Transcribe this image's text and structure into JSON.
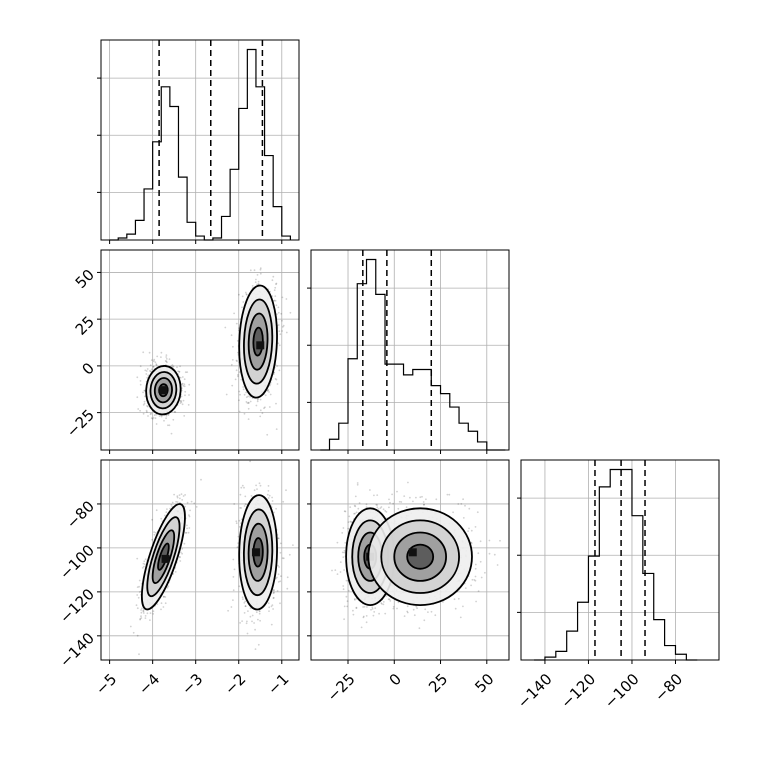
{
  "chart_data": {
    "type": "corner",
    "parameters": [
      {
        "id": "p1",
        "range": [
          -5.2,
          -0.6
        ],
        "ticks": [
          -5,
          -4,
          -3,
          -2,
          -1
        ],
        "tick_labels": [
          "−5",
          "−4",
          "−3",
          "−2",
          "−1"
        ],
        "quantiles": [
          -3.85,
          -2.65,
          -1.45
        ],
        "histogram": {
          "edges": [
            -5.0,
            -4.8,
            -4.6,
            -4.4,
            -4.2,
            -4.0,
            -3.8,
            -3.6,
            -3.4,
            -3.2,
            -3.0,
            -2.8,
            -2.6,
            -2.4,
            -2.2,
            -2.0,
            -1.8,
            -1.6,
            -1.4,
            -1.2,
            -1.0,
            -0.8
          ],
          "counts": [
            0,
            1,
            3,
            10,
            26,
            50,
            78,
            68,
            32,
            9,
            2,
            0,
            1,
            12,
            36,
            67,
            97,
            78,
            43,
            17,
            2
          ]
        }
      },
      {
        "id": "p2",
        "range": [
          -45,
          62
        ],
        "ticks": [
          -25,
          0,
          25,
          50
        ],
        "tick_labels": [
          "−25",
          "0",
          "25",
          "50"
        ],
        "quantiles": [
          -17,
          -4,
          20
        ],
        "histogram": {
          "edges": [
            -40,
            -35,
            -30,
            -25,
            -20,
            -15,
            -10,
            -5,
            0,
            5,
            10,
            15,
            20,
            25,
            30,
            35,
            40,
            45,
            50,
            55,
            60
          ],
          "counts": [
            0,
            4,
            10,
            34,
            62,
            71,
            58,
            32,
            32,
            28,
            30,
            30,
            24,
            21,
            16,
            10,
            7,
            3,
            0,
            0
          ]
        }
      },
      {
        "id": "p3",
        "range": [
          -151,
          -60
        ],
        "ticks": [
          -140,
          -120,
          -100,
          -80
        ],
        "tick_labels": [
          "−140",
          "−120",
          "−100",
          "−80"
        ],
        "quantiles": [
          -117,
          -105,
          -94
        ],
        "histogram": {
          "edges": [
            -145,
            -140,
            -135,
            -130,
            -125,
            -120,
            -115,
            -110,
            -105,
            -100,
            -95,
            -90,
            -85,
            -80,
            -75,
            -70
          ],
          "counts": [
            0,
            1,
            3,
            10,
            20,
            36,
            60,
            66,
            66,
            50,
            30,
            14,
            5,
            2,
            0
          ]
        }
      }
    ],
    "pairs": [
      {
        "x": "p1",
        "y": "p2",
        "modes": [
          {
            "center": [
              -3.75,
              -13
            ],
            "sigma": [
              0.2,
              6.5
            ],
            "rho": 0.05,
            "peak_x": -3.75,
            "peak_y": -13
          },
          {
            "center": [
              -1.55,
              13
            ],
            "sigma": [
              0.22,
              15
            ],
            "rho": 0.1,
            "peak_x": -1.5,
            "peak_y": 11
          }
        ]
      },
      {
        "x": "p1",
        "y": "p3",
        "modes": [
          {
            "center": [
              -3.75,
              -104
            ],
            "sigma": [
              0.25,
              12
            ],
            "rho": 0.75,
            "peak_x": -3.7,
            "peak_y": -105
          },
          {
            "center": [
              -1.55,
              -102
            ],
            "sigma": [
              0.22,
              13
            ],
            "rho": 0.05,
            "peak_x": -1.6,
            "peak_y": -102
          }
        ]
      },
      {
        "x": "p2",
        "y": "p3",
        "modes": [
          {
            "center": [
              -13,
              -104
            ],
            "sigma": [
              6.5,
              11
            ],
            "rho": 0.0,
            "peak_x": -13,
            "peak_y": -104
          },
          {
            "center": [
              14,
              -104
            ],
            "sigma": [
              14,
              11
            ],
            "rho": 0.0,
            "peak_x": 10,
            "peak_y": -102
          }
        ]
      }
    ],
    "grid": true,
    "contour_levels": 4,
    "quantile_line_style": "dashed"
  }
}
